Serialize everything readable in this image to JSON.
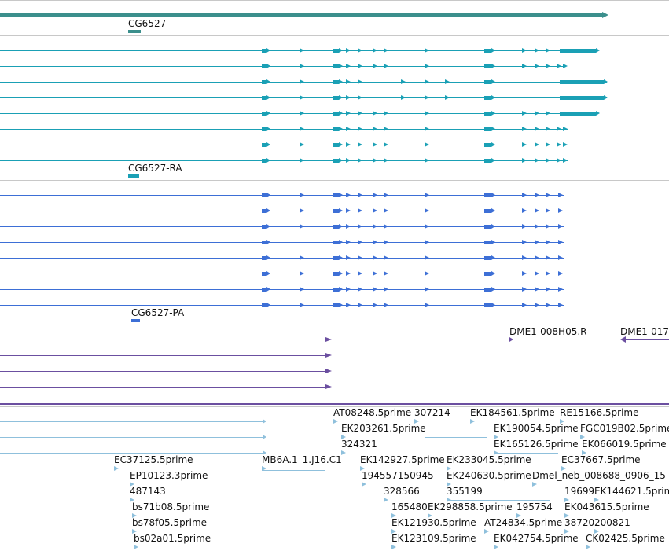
{
  "colors": {
    "gene": "#3b8f8c",
    "rna": "#1aa0b5",
    "protein": "#3d6fd6",
    "clone": "#6b4fa0",
    "est": "#8fc0dc",
    "separator": "#c8c8c8"
  },
  "gene_track": {
    "label": "CG6527"
  },
  "rna_track": {
    "label": "CG6527-RA"
  },
  "protein_track": {
    "label": "CG6527-PA"
  },
  "clone_track": {
    "labels": [
      "DME1-008H05.R",
      "DME1-017"
    ]
  },
  "est_track": {
    "labels": [
      "AT08248.5prime",
      "307214",
      "EK184561.5prime",
      "RE15166.5prime",
      "EK203261.5prime",
      "EK190054.5prime",
      "FGC019B02.5prime",
      "324321",
      "EK165126.5prime",
      "EK066019.5prime",
      "EC37125.5prime",
      "MB6A.1_1.J16.C1",
      "EK142927.5prime",
      "EK233045.5prime",
      "EC37667.5prime",
      "EP10123.3prime",
      "194557150945",
      "EK240630.5prime",
      "Dmel_neb_008688_0906_15",
      "487143",
      "328566",
      "355199",
      "19699",
      "EK144621.5prime",
      "bs71b08.5prime",
      "165480",
      "EK298858.5prime",
      "195754",
      "EK043615.5prime",
      "bs78f05.5prime",
      "EK121930.5prime",
      "AT24834.5prime",
      "38720",
      "200821",
      "bs02a01.5prime",
      "EK123109.5prime",
      "EK042754.5prime",
      "CK02425.5prime"
    ]
  }
}
